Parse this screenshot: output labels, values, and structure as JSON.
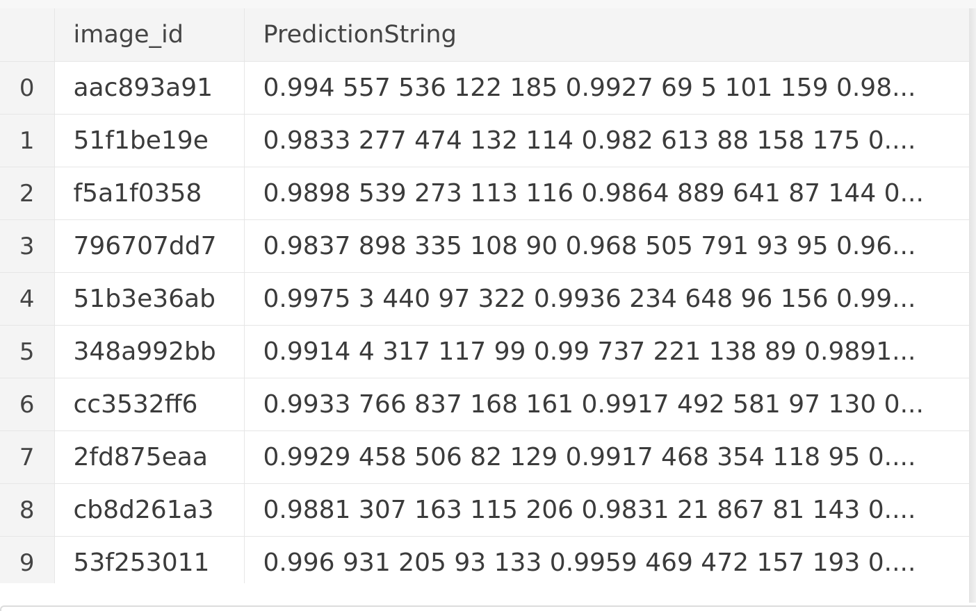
{
  "table": {
    "columns": [
      "",
      "image_id",
      "PredictionString"
    ],
    "rows": [
      {
        "index": "0",
        "image_id": "aac893a91",
        "prediction": "0.994 557 536 122 185 0.9927 69 5 101 159 0.98..."
      },
      {
        "index": "1",
        "image_id": "51f1be19e",
        "prediction": "0.9833 277 474 132 114 0.982 613 88 158 175 0...."
      },
      {
        "index": "2",
        "image_id": "f5a1f0358",
        "prediction": "0.9898 539 273 113 116 0.9864 889 641 87 144 0..."
      },
      {
        "index": "3",
        "image_id": "796707dd7",
        "prediction": "0.9837 898 335 108 90 0.968 505 791 93 95 0.96..."
      },
      {
        "index": "4",
        "image_id": "51b3e36ab",
        "prediction": "0.9975 3 440 97 322 0.9936 234 648 96 156 0.99..."
      },
      {
        "index": "5",
        "image_id": "348a992bb",
        "prediction": "0.9914 4 317 117 99 0.99 737 221 138 89 0.9891..."
      },
      {
        "index": "6",
        "image_id": "cc3532ff6",
        "prediction": "0.9933 766 837 168 161 0.9917 492 581 97 130 0..."
      },
      {
        "index": "7",
        "image_id": "2fd875eaa",
        "prediction": "0.9929 458 506 82 129 0.9917 468 354 118 95 0...."
      },
      {
        "index": "8",
        "image_id": "cb8d261a3",
        "prediction": "0.9881 307 163 115 206 0.9831 21 867 81 143 0...."
      },
      {
        "index": "9",
        "image_id": "53f253011",
        "prediction": "0.996 931 205 93 133 0.9959 469 472 157 193 0...."
      }
    ]
  }
}
